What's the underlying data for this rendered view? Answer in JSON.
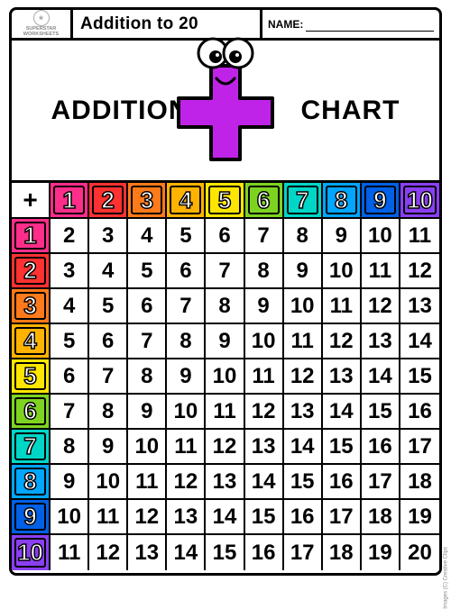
{
  "logo": {
    "line1": "SUPERSTAR",
    "line2": "WORKSHEETS",
    "mark": "★"
  },
  "topbar": {
    "title": "Addition to 20",
    "name_label": "NAME:"
  },
  "header": {
    "word_left": "ADDITION",
    "word_right": "CHART"
  },
  "table": {
    "corner": "+",
    "labels": [
      "1",
      "2",
      "3",
      "4",
      "5",
      "6",
      "7",
      "8",
      "9",
      "10"
    ],
    "header_colors": [
      "#ff2e8a",
      "#ff3131",
      "#ff7a1a",
      "#ffb300",
      "#ffe600",
      "#7ed321",
      "#00d6c7",
      "#00a6ff",
      "#0060e6",
      "#8a3ff2"
    ],
    "cells": [
      [
        2,
        3,
        4,
        5,
        6,
        7,
        8,
        9,
        10,
        11
      ],
      [
        3,
        4,
        5,
        6,
        7,
        8,
        9,
        10,
        11,
        12
      ],
      [
        4,
        5,
        6,
        7,
        8,
        9,
        10,
        11,
        12,
        13
      ],
      [
        5,
        6,
        7,
        8,
        9,
        10,
        11,
        12,
        13,
        14
      ],
      [
        6,
        7,
        8,
        9,
        10,
        11,
        12,
        13,
        14,
        15
      ],
      [
        7,
        8,
        9,
        10,
        11,
        12,
        13,
        14,
        15,
        16
      ],
      [
        8,
        9,
        10,
        11,
        12,
        13,
        14,
        15,
        16,
        17
      ],
      [
        9,
        10,
        11,
        12,
        13,
        14,
        15,
        16,
        17,
        18
      ],
      [
        10,
        11,
        12,
        13,
        14,
        15,
        16,
        17,
        18,
        19
      ],
      [
        11,
        12,
        13,
        14,
        15,
        16,
        17,
        18,
        19,
        20
      ]
    ]
  },
  "plus": {
    "fill": "#c023e8",
    "stroke": "#000000",
    "eye_white": "#ffffff",
    "eye_black": "#000000",
    "mouth": "#000000"
  },
  "credit": "Images (C) Creative Clips"
}
